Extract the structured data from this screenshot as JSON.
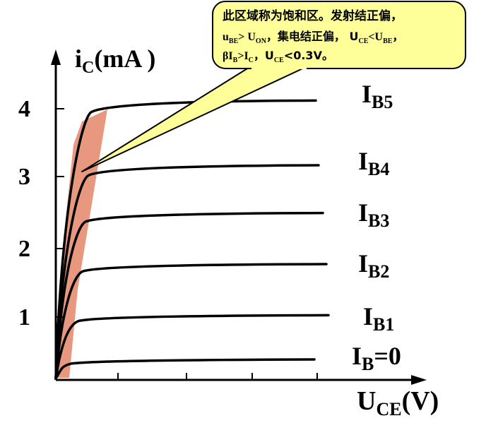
{
  "colors": {
    "background": "#ffffff",
    "axis": "#000000",
    "curve": "#000000",
    "saturation_region": "#e99880",
    "callout_fill": "#ffff99",
    "callout_border": "#000000"
  },
  "axes": {
    "y_label": {
      "i": "i",
      "sub": "C",
      "rest": "(mA  )"
    },
    "x_label": {
      "main": "U",
      "sub": "CE",
      "rest": "(V)"
    },
    "y_ticks": [
      "1",
      "2",
      "3",
      "4"
    ]
  },
  "curves": [
    {
      "id": "IB0",
      "label_main": "I",
      "label_sub": "B",
      "label_rest": "=0",
      "level": 0.3
    },
    {
      "id": "IB1",
      "label_main": "I",
      "label_sub": "B1",
      "label_rest": "",
      "level": 0.95
    },
    {
      "id": "IB2",
      "label_main": "I",
      "label_sub": "B2",
      "label_rest": "",
      "level": 1.7
    },
    {
      "id": "IB3",
      "label_main": "I",
      "label_sub": "B3",
      "label_rest": "",
      "level": 2.45
    },
    {
      "id": "IB4",
      "label_main": "I",
      "label_sub": "B4",
      "label_rest": "",
      "level": 3.15
    },
    {
      "id": "IB5",
      "label_main": "I",
      "label_sub": "B5",
      "label_rest": "",
      "level": 4.1
    }
  ],
  "callout": {
    "line1": "此区域称为饱和区。发射结正偏，",
    "line2": {
      "a": "u",
      "a_sub": "BE",
      "b": "> U",
      "b_sub": "ON",
      "c": "，集电结正偏，  U",
      "c_sub": "CE",
      "d": "<U",
      "d_sub": "BE",
      "e": "，"
    },
    "line3": {
      "a": "βI",
      "a_sub": "B",
      "b": ">I",
      "b_sub": "C",
      "c": "，U",
      "c_sub": "CE",
      "d": "<0.3V。"
    }
  }
}
